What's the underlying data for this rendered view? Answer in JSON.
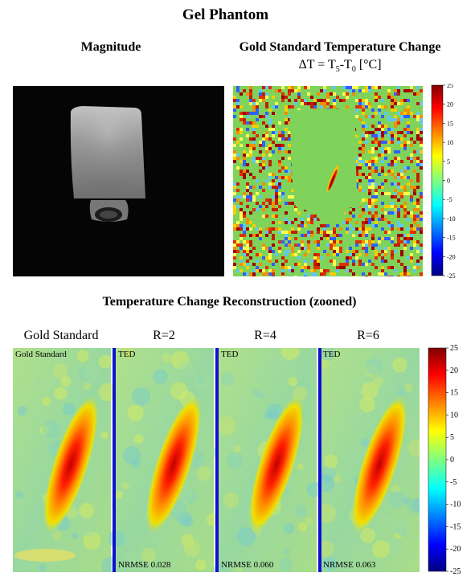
{
  "figure": {
    "title": "Gel Phantom",
    "magnitude_label": "Magnitude",
    "gold_label": "Gold Standard Temperature Change",
    "formula": {
      "delta": "ΔT = T",
      "sub1": "5",
      "dash": "-T",
      "sub2": "0",
      "unit": " [°C]"
    },
    "recon_title": "Temperature Change Reconstruction (zooned)",
    "columns": [
      "Gold Standard",
      "R=2",
      "R=4",
      "R=6"
    ],
    "panels": [
      {
        "tag": "Gold Standard",
        "nrmse": ""
      },
      {
        "tag": "TED",
        "nrmse": "NRMSE 0.028"
      },
      {
        "tag": "TED",
        "nrmse": "NRMSE 0.060"
      },
      {
        "tag": "TED",
        "nrmse": "NRMSE 0.063"
      }
    ],
    "colorbar_ticks": [
      "25",
      "20",
      "15",
      "10",
      "5",
      "0",
      "-5",
      "-10",
      "-15",
      "-20",
      "-25"
    ]
  },
  "chart_data": [
    {
      "type": "heatmap",
      "title": "Gold Standard Temperature Change",
      "colormap": "jet",
      "clim": [
        -25,
        25
      ]
    },
    {
      "type": "heatmap",
      "title": "Temperature Change Reconstruction (zooned)",
      "colormap": "jet",
      "clim": [
        -25,
        25
      ],
      "panels": [
        "Gold Standard",
        "R=2",
        "R=4",
        "R=6"
      ],
      "nrmse": [
        null,
        0.028,
        0.06,
        0.063
      ]
    }
  ]
}
